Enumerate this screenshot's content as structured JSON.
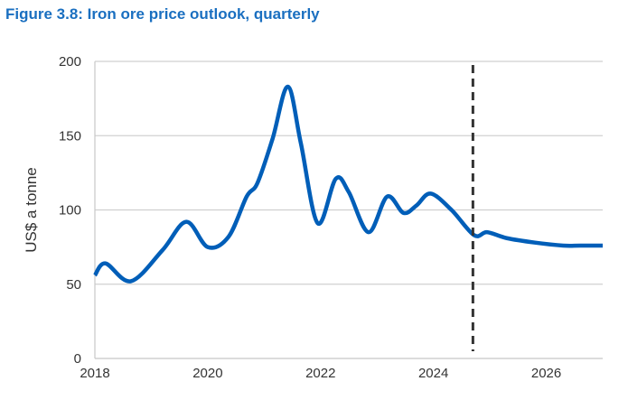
{
  "chart_data": {
    "type": "line",
    "title": "Figure 3.8: Iron ore price outlook, quarterly",
    "xlabel": "",
    "ylabel": "US$ a tonne",
    "xlim": [
      2018,
      2027
    ],
    "ylim": [
      0,
      200
    ],
    "xticks": [
      2018,
      2020,
      2022,
      2024,
      2026
    ],
    "yticks": [
      0,
      50,
      100,
      150,
      200
    ],
    "grid": "horizontal",
    "forecast_divider_x": 2024.7,
    "line_color": "#005eb8",
    "series": [
      {
        "x": [
          2018.0,
          2018.19,
          2018.64,
          2019.2,
          2019.62,
          2020.0,
          2020.37,
          2020.69,
          2020.88,
          2021.15,
          2021.42,
          2021.65,
          2021.95,
          2022.27,
          2022.5,
          2022.85,
          2023.18,
          2023.47,
          2023.7,
          2023.95,
          2024.32,
          2024.72,
          2024.95,
          2025.3,
          2025.8,
          2026.3,
          2026.6,
          2027.0
        ],
        "y": [
          56,
          64,
          52,
          73,
          92,
          75,
          82,
          109,
          118,
          148,
          183,
          145,
          91,
          121,
          112,
          85,
          109,
          98,
          103,
          111,
          100,
          83,
          85,
          81,
          78,
          76,
          76,
          76
        ]
      }
    ]
  }
}
